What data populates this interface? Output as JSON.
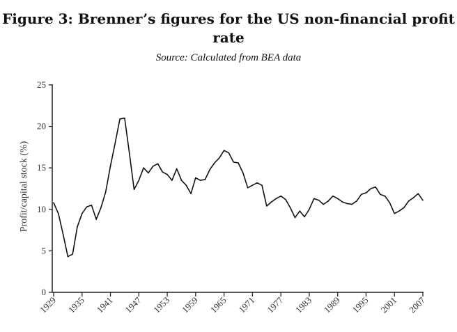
{
  "chart_data": {
    "type": "line",
    "title_line1": "Figure 3: Brenner’s figures for the US non-financial profit",
    "title_line2": "rate",
    "subtitle": "Source: Calculated from BEA data",
    "xlabel": "",
    "ylabel": "Profit/capital stock (%)",
    "xlim": [
      1929,
      2007
    ],
    "ylim": [
      0,
      25
    ],
    "yticks": [
      "0",
      "5",
      "10",
      "15",
      "20",
      "25"
    ],
    "xticks": [
      "1929",
      "1935",
      "1941",
      "1947",
      "1953",
      "1959",
      "1965",
      "1971",
      "1977",
      "1983",
      "1989",
      "1995",
      "2001",
      "2007"
    ],
    "series": [
      {
        "name": "US non-financial profit rate",
        "x": [
          1929,
          1930,
          1931,
          1932,
          1933,
          1934,
          1935,
          1936,
          1937,
          1938,
          1939,
          1940,
          1941,
          1942,
          1943,
          1944,
          1945,
          1946,
          1947,
          1948,
          1949,
          1950,
          1951,
          1952,
          1953,
          1954,
          1955,
          1956,
          1957,
          1958,
          1959,
          1960,
          1961,
          1962,
          1963,
          1964,
          1965,
          1966,
          1967,
          1968,
          1969,
          1970,
          1971,
          1972,
          1973,
          1974,
          1975,
          1976,
          1977,
          1978,
          1979,
          1980,
          1981,
          1982,
          1983,
          1984,
          1985,
          1986,
          1987,
          1988,
          1989,
          1990,
          1991,
          1992,
          1993,
          1994,
          1995,
          1996,
          1997,
          1998,
          1999,
          2000,
          2001,
          2002,
          2003,
          2004,
          2005,
          2006,
          2007
        ],
        "values": [
          10.8,
          9.5,
          7.0,
          4.3,
          4.6,
          7.9,
          9.5,
          10.3,
          10.5,
          8.8,
          10.2,
          12.1,
          15.2,
          18.0,
          20.9,
          21.0,
          16.8,
          12.4,
          13.5,
          15.0,
          14.4,
          15.2,
          15.5,
          14.5,
          14.2,
          13.5,
          14.9,
          13.5,
          12.9,
          11.9,
          13.8,
          13.5,
          13.6,
          14.8,
          15.6,
          16.2,
          17.1,
          16.8,
          15.7,
          15.6,
          14.4,
          12.6,
          12.9,
          13.2,
          12.9,
          10.4,
          10.9,
          11.3,
          11.6,
          11.2,
          10.2,
          9.0,
          9.8,
          9.1,
          10.0,
          11.3,
          11.1,
          10.6,
          11.0,
          11.6,
          11.3,
          10.9,
          10.7,
          10.6,
          11.0,
          11.8,
          12.0,
          12.5,
          12.7,
          11.8,
          11.6,
          10.8,
          9.5,
          9.8,
          10.2,
          11.0,
          11.4,
          11.9,
          11.1
        ]
      }
    ]
  }
}
